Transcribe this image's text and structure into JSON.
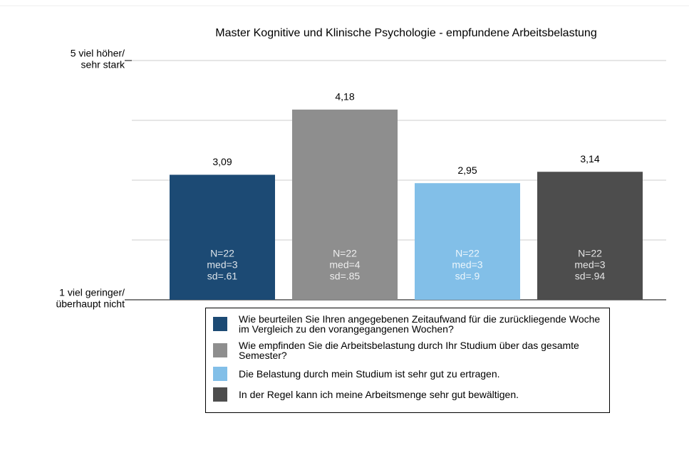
{
  "chart_data": {
    "type": "bar",
    "title": "Master Kognitive und Klinische Psychologie - empfundene Arbeitsbelastung",
    "ylim": [
      1,
      5
    ],
    "ygrid": [
      1,
      2,
      3,
      4,
      5
    ],
    "yticks": [
      {
        "value": 1,
        "label": [
          "1 viel geringer/",
          "überhaupt nicht"
        ]
      },
      {
        "value": 5,
        "label": [
          "5 viel höher/",
          "sehr stark"
        ]
      }
    ],
    "grid": true,
    "series": [
      {
        "name": "Wie beurteilen Sie Ihren angegebenen Zeitaufwand für die zurückliegende Woche im Vergleich zu den vorangegangenen Wochen?",
        "color": "#1c4a74",
        "values": [
          3.09
        ],
        "value_labels": [
          "3,09"
        ],
        "notes": [
          "N=22",
          "med=3",
          "sd=.61"
        ]
      },
      {
        "name": "Wie empfinden Sie die Arbeitsbelastung durch Ihr Studium über das gesamte Semester?",
        "color": "#8e8e8e",
        "values": [
          4.18
        ],
        "value_labels": [
          "4,18"
        ],
        "notes": [
          "N=22",
          "med=4",
          "sd=.85"
        ]
      },
      {
        "name": "Die Belastung durch mein Studium ist sehr gut zu ertragen.",
        "color": "#82bfe8",
        "values": [
          2.95
        ],
        "value_labels": [
          "2,95"
        ],
        "notes": [
          "N=22",
          "med=3",
          "sd=.9"
        ]
      },
      {
        "name": "In der Regel kann ich meine Arbeitsmenge sehr gut bewältigen.",
        "color": "#4d4d4d",
        "values": [
          3.14
        ],
        "value_labels": [
          "3,14"
        ],
        "notes": [
          "N=22",
          "med=3",
          "sd=.94"
        ]
      }
    ]
  }
}
